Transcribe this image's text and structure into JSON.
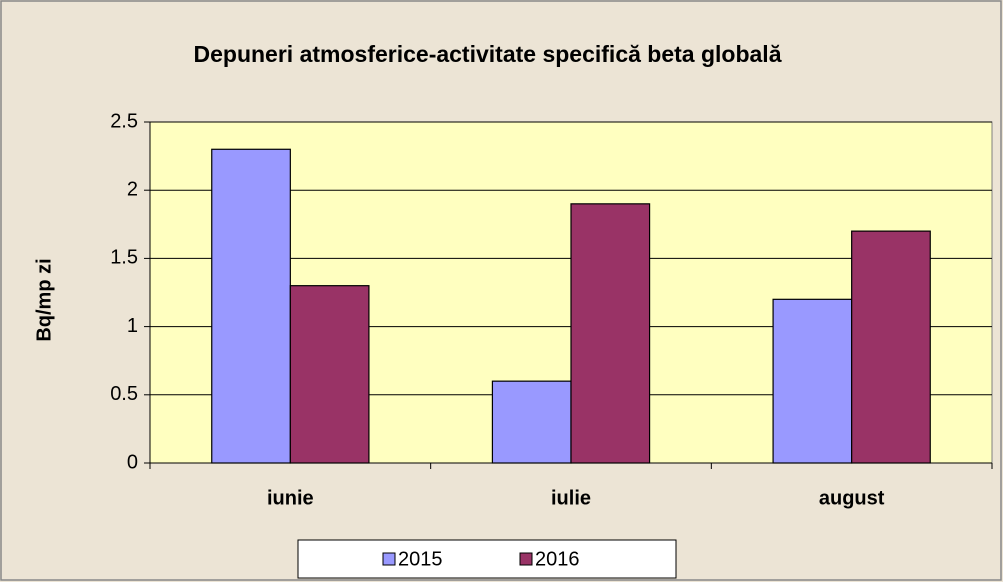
{
  "chart_data": {
    "type": "bar",
    "title": "Depuneri atmosferice-activitate specifică beta globală",
    "y_label": "Bq/mp zi",
    "categories": [
      "iunie",
      "iulie",
      "august"
    ],
    "series": [
      {
        "name": "2015",
        "color": "#9999ff",
        "values": [
          2.3,
          0.6,
          1.2
        ]
      },
      {
        "name": "2016",
        "color": "#993366",
        "values": [
          1.3,
          1.9,
          1.7
        ]
      }
    ],
    "ylim": [
      0,
      2.5
    ],
    "yticks": [
      0,
      0.5,
      1,
      1.5,
      2,
      2.5
    ],
    "grid": true,
    "legend": "bottom"
  }
}
